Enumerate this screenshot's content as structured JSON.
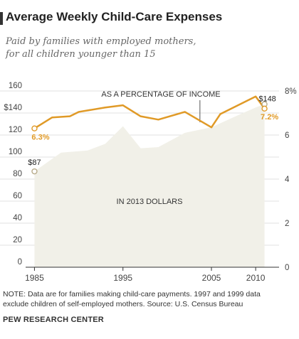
{
  "chart_data": {
    "type": "line",
    "title": "Average Weekly Child-Care Expenses",
    "subtitle_lines": [
      "Paid by families with employed mothers,",
      "for all children younger than 15"
    ],
    "x_ticks": [
      "1985",
      "1995",
      "2005",
      "2010"
    ],
    "xlim": [
      1984,
      2012
    ],
    "left_axis": {
      "ticks": [
        "0",
        "20",
        "40",
        "60",
        "80",
        "100",
        "120",
        "$140",
        "160"
      ],
      "ylim": [
        0,
        160
      ]
    },
    "right_axis": {
      "ticks": [
        "0",
        "2",
        "4",
        "6",
        "8%"
      ],
      "ylim": [
        0,
        8
      ]
    },
    "series": [
      {
        "name": "IN 2013 DOLLARS",
        "kind": "area",
        "axis": "left",
        "color": "#f1f0e8",
        "points": [
          [
            1985,
            87
          ],
          [
            1988,
            104
          ],
          [
            1991,
            106
          ],
          [
            1993,
            112
          ],
          [
            1995,
            128
          ],
          [
            1997,
            108
          ],
          [
            1999,
            109
          ],
          [
            2002,
            122
          ],
          [
            2005,
            127
          ],
          [
            2008,
            138
          ],
          [
            2010,
            145
          ],
          [
            2011,
            148
          ]
        ]
      },
      {
        "name": "AS A PERCENTAGE OF INCOME",
        "kind": "line",
        "axis": "right",
        "color": "#e09a27",
        "points": [
          [
            1985,
            6.3
          ],
          [
            1986,
            6.55
          ],
          [
            1987,
            6.8
          ],
          [
            1989,
            6.85
          ],
          [
            1990,
            7.05
          ],
          [
            1993,
            7.25
          ],
          [
            1995,
            7.35
          ],
          [
            1997,
            6.85
          ],
          [
            1999,
            6.7
          ],
          [
            2002,
            7.05
          ],
          [
            2005,
            6.35
          ],
          [
            2006,
            6.95
          ],
          [
            2008,
            7.35
          ],
          [
            2010,
            7.75
          ],
          [
            2011,
            7.2
          ]
        ]
      }
    ],
    "annotations": {
      "area_start": "$87",
      "area_end": "$148",
      "line_start": "6.3%",
      "line_end": "7.2%"
    }
  },
  "note_lines": [
    "NOTE: Data are for families making child-care payments. 1997 and 1999 data",
    "exclude children of self-employed mothers. Source: U.S. Census Bureau"
  ],
  "source": "PEW RESEARCH CENTER"
}
